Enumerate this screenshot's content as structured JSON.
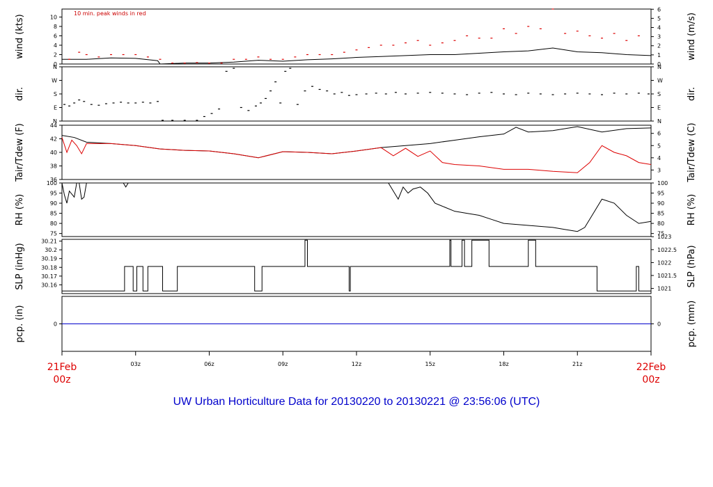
{
  "footer": {
    "title": "UW Urban Horticulture Data for 20130220  to  20130221 @ 23:56:06  (UTC)"
  },
  "colors": {
    "black": "#000000",
    "red": "#dd0000",
    "blue": "#0000cc"
  },
  "chart_data": {
    "type": "line",
    "x_axis": {
      "unit": "hour UTC",
      "range": [
        0,
        24
      ],
      "ticks": [
        {
          "x": 0,
          "line1": "21Feb",
          "line2": "00z",
          "red": true
        },
        {
          "x": 3,
          "line1": "03z",
          "line2": "",
          "red": false
        },
        {
          "x": 6,
          "line1": "06z",
          "line2": "",
          "red": false
        },
        {
          "x": 9,
          "line1": "09z",
          "line2": "",
          "red": false
        },
        {
          "x": 12,
          "line1": "12z",
          "line2": "",
          "red": false
        },
        {
          "x": 15,
          "line1": "15z",
          "line2": "",
          "red": false
        },
        {
          "x": 18,
          "line1": "18z",
          "line2": "",
          "red": false
        },
        {
          "x": 21,
          "line1": "21z",
          "line2": "",
          "red": false
        },
        {
          "x": 24,
          "line1": "22Feb",
          "line2": "00z",
          "red": true
        }
      ]
    },
    "panels": [
      {
        "id": "wind",
        "ylabel_left": "wind (kts)",
        "ylabel_right": "wind (m/s)",
        "annotation": "10 min. peak winds in red",
        "ylim": [
          0,
          11.7
        ],
        "left_ticks": [
          0,
          2,
          4,
          6,
          8,
          10
        ],
        "right_ticks": [
          {
            "v": 0,
            "label": "0"
          },
          {
            "v": 1.944,
            "label": "1"
          },
          {
            "v": 3.888,
            "label": "2"
          },
          {
            "v": 5.832,
            "label": "3"
          },
          {
            "v": 7.776,
            "label": "4"
          },
          {
            "v": 9.72,
            "label": "5"
          },
          {
            "v": 11.66,
            "label": "6"
          }
        ],
        "series": [
          {
            "role": "speed",
            "color": "#000000",
            "style": "line",
            "x": [
              0,
              1,
              2,
              3,
              3.9,
              4,
              5,
              6,
              7,
              8,
              9,
              10,
              11,
              12,
              13,
              14,
              15,
              16,
              17,
              18,
              19,
              20,
              21,
              22,
              23,
              24
            ],
            "y": [
              1.0,
              1.0,
              1.3,
              1.2,
              0.7,
              0,
              0.2,
              0.2,
              0.4,
              0.8,
              0.6,
              0.9,
              1.1,
              1.4,
              1.6,
              1.8,
              2.0,
              2.0,
              2.3,
              2.6,
              2.8,
              3.4,
              2.6,
              2.4,
              2.0,
              1.8
            ]
          },
          {
            "role": "peak",
            "color": "#dd0000",
            "style": "points",
            "x": [
              0.3,
              0.7,
              1.0,
              1.5,
              2.0,
              2.5,
              3.0,
              3.5,
              4.0,
              4.5,
              5.0,
              5.5,
              6.0,
              6.5,
              7.0,
              7.5,
              8.0,
              8.5,
              9.0,
              9.5,
              10.0,
              10.5,
              11.0,
              11.5,
              12.0,
              12.5,
              13.0,
              13.5,
              14.0,
              14.5,
              15.0,
              15.5,
              16.0,
              16.5,
              17.0,
              17.5,
              18.0,
              18.5,
              19.0,
              19.5,
              20.0,
              20.5,
              21.0,
              21.5,
              22.0,
              22.5,
              23.0,
              23.5
            ],
            "y": [
              1.0,
              2.5,
              2.0,
              1.5,
              2.0,
              2.0,
              2.0,
              1.5,
              1.0,
              0.2,
              0.2,
              0.3,
              0.2,
              0.2,
              1.0,
              1.0,
              1.5,
              1.0,
              1.0,
              1.5,
              2.0,
              2.0,
              2.0,
              2.5,
              3.0,
              3.5,
              4.0,
              4.0,
              4.5,
              5.0,
              4.0,
              4.5,
              5.0,
              6.0,
              5.5,
              5.5,
              7.5,
              6.5,
              8.0,
              7.5,
              11.7,
              6.5,
              7.0,
              6.0,
              5.5,
              6.5,
              5.0,
              6.0
            ]
          }
        ]
      },
      {
        "id": "dir",
        "ylabel_left": "dir.",
        "ylabel_right": "dir.",
        "ylim": [
          0,
          360
        ],
        "left_ticks": [
          {
            "v": 0,
            "label": "N"
          },
          {
            "v": 90,
            "label": "E"
          },
          {
            "v": 180,
            "label": "S"
          },
          {
            "v": 270,
            "label": "W"
          },
          {
            "v": 360,
            "label": "N"
          }
        ],
        "right_ticks": [
          {
            "v": 0,
            "label": "N"
          },
          {
            "v": 90,
            "label": "E"
          },
          {
            "v": 180,
            "label": "S"
          },
          {
            "v": 270,
            "label": "W"
          },
          {
            "v": 360,
            "label": "N"
          }
        ],
        "series": [
          {
            "role": "direction",
            "color": "#000000",
            "style": "points",
            "x": [
              0.1,
              0.3,
              0.5,
              0.7,
              0.9,
              1.2,
              1.5,
              1.8,
              2.1,
              2.4,
              2.7,
              3.0,
              3.3,
              3.6,
              3.9,
              4.1,
              4.5,
              5.0,
              5.5,
              5.8,
              6.1,
              6.4,
              6.7,
              7.0,
              7.3,
              7.6,
              7.9,
              8.1,
              8.3,
              8.5,
              8.7,
              8.9,
              9.1,
              9.3,
              9.6,
              9.9,
              10.2,
              10.5,
              10.8,
              11.1,
              11.4,
              11.7,
              12.0,
              12.4,
              12.8,
              13.2,
              13.6,
              14.0,
              14.5,
              15.0,
              15.5,
              16.0,
              16.5,
              17.0,
              17.5,
              18.0,
              18.5,
              19.0,
              19.5,
              20.0,
              20.5,
              21.0,
              21.5,
              22.0,
              22.5,
              23.0,
              23.5,
              23.9
            ],
            "y": [
              110,
              100,
              120,
              140,
              130,
              110,
              105,
              115,
              120,
              125,
              120,
              120,
              125,
              120,
              130,
              5,
              5,
              5,
              5,
              30,
              50,
              80,
              330,
              350,
              90,
              70,
              100,
              120,
              150,
              200,
              260,
              120,
              330,
              350,
              110,
              200,
              230,
              210,
              200,
              180,
              190,
              170,
              175,
              180,
              185,
              180,
              190,
              180,
              185,
              190,
              185,
              180,
              175,
              185,
              190,
              180,
              175,
              185,
              180,
              175,
              180,
              185,
              180,
              175,
              185,
              180,
              185,
              180
            ]
          }
        ]
      },
      {
        "id": "temp",
        "ylabel_left": "Tair/Tdew (F)",
        "ylabel_right": "Tair/Tdew (C)",
        "ylim": [
          36,
          44
        ],
        "left_ticks": [
          36,
          38,
          40,
          42,
          44
        ],
        "right_ticks": [
          {
            "v": 37.4,
            "label": "3"
          },
          {
            "v": 39.2,
            "label": "4"
          },
          {
            "v": 41,
            "label": "5"
          },
          {
            "v": 42.8,
            "label": "6"
          }
        ],
        "series": [
          {
            "role": "Tair",
            "color": "#000000",
            "style": "line",
            "x": [
              0,
              0.5,
              1,
              2,
              3,
              4,
              5,
              6,
              7,
              8,
              9,
              10,
              11,
              12,
              13,
              14,
              15,
              16,
              17,
              18,
              18.5,
              19,
              20,
              21,
              22,
              23,
              24
            ],
            "y": [
              42.5,
              42.2,
              41.5,
              41.3,
              41.0,
              40.5,
              40.3,
              40.2,
              39.8,
              39.2,
              40.1,
              40.0,
              39.8,
              40.2,
              40.7,
              41.0,
              41.3,
              41.8,
              42.3,
              42.7,
              43.7,
              43.0,
              43.2,
              43.8,
              43.0,
              43.5,
              43.6
            ]
          },
          {
            "role": "Tdew",
            "color": "#dd0000",
            "style": "line",
            "x": [
              0,
              0.2,
              0.4,
              0.6,
              0.8,
              1,
              2,
              3,
              4,
              5,
              6,
              7,
              8,
              9,
              10,
              11,
              12,
              13,
              13.5,
              14,
              14.5,
              15,
              15.5,
              16,
              17,
              18,
              19,
              20,
              21,
              21.5,
              22,
              22.5,
              23,
              23.5,
              24
            ],
            "y": [
              42.2,
              40.0,
              41.8,
              41.0,
              39.8,
              41.3,
              41.3,
              41.0,
              40.5,
              40.3,
              40.2,
              39.8,
              39.2,
              40.1,
              40.0,
              39.8,
              40.2,
              40.7,
              39.5,
              40.6,
              39.4,
              40.2,
              38.5,
              38.2,
              38.0,
              37.5,
              37.5,
              37.2,
              37.0,
              38.5,
              41.0,
              40.0,
              39.5,
              38.5,
              38.2
            ]
          }
        ]
      },
      {
        "id": "rh",
        "ylabel_left": "RH (%)",
        "ylabel_right": "RH (%)",
        "ylim": [
          73.5,
          100
        ],
        "left_ticks": [
          75,
          80,
          85,
          90,
          95,
          100
        ],
        "right_ticks": [
          {
            "v": 75,
            "label": "75"
          },
          {
            "v": 80,
            "label": "80"
          },
          {
            "v": 85,
            "label": "85"
          },
          {
            "v": 90,
            "label": "90"
          },
          {
            "v": 95,
            "label": "95"
          },
          {
            "v": 100,
            "label": "100"
          }
        ],
        "series": [
          {
            "role": "RH",
            "color": "#000000",
            "style": "line",
            "x": [
              0,
              0.1,
              0.2,
              0.3,
              0.5,
              0.6,
              0.7,
              0.8,
              0.9,
              1.0,
              1.1,
              1.2,
              2.5,
              2.6,
              2.7,
              13.3,
              13.5,
              13.7,
              13.9,
              14.1,
              14.3,
              14.6,
              14.9,
              15.2,
              15.6,
              16.0,
              16.5,
              17.0,
              17.5,
              18.0,
              19.0,
              20.0,
              20.5,
              21.0,
              21.3,
              21.6,
              22.0,
              22.5,
              23.0,
              23.5,
              24.0
            ],
            "y": [
              100,
              94,
              90,
              96,
              93,
              100,
              100,
              92,
              93,
              100,
              100,
              100,
              100,
              98,
              100,
              100,
              96,
              92,
              98,
              95,
              97,
              98,
              95,
              90,
              88,
              86,
              85,
              84,
              82,
              80,
              79,
              78,
              77,
              76,
              78,
              84,
              92,
              90,
              84,
              80,
              81
            ]
          }
        ]
      },
      {
        "id": "slp",
        "ylabel_left": "SLP (inHg)",
        "ylabel_right": "SLP (hPa)",
        "ylim": [
          30.15,
          30.212
        ],
        "left_ticks": [
          30.16,
          30.17,
          30.18,
          30.19,
          30.2,
          30.21
        ],
        "right_ticks": [
          {
            "v": 30.1559,
            "label": "1021"
          },
          {
            "v": 30.1707,
            "label": "1021.5"
          },
          {
            "v": 30.1854,
            "label": "1022"
          },
          {
            "v": 30.2002,
            "label": "1022.5"
          },
          {
            "v": 30.215,
            "label": "1023"
          }
        ],
        "series": [
          {
            "role": "SLP",
            "color": "#000000",
            "style": "step",
            "x": [
              0,
              2.55,
              2.9,
              3.05,
              3.3,
              3.5,
              3.75,
              4.1,
              4.7,
              7.85,
              8.15,
              9.9,
              10.0,
              11.7,
              11.75,
              15.8,
              15.85,
              16.3,
              16.4,
              16.7,
              17.4,
              19.0,
              19.3,
              21.8,
              23.4,
              23.5,
              24
            ],
            "y": [
              30.153,
              30.181,
              30.153,
              30.181,
              30.153,
              30.181,
              30.181,
              30.153,
              30.181,
              30.153,
              30.181,
              30.211,
              30.181,
              30.153,
              30.181,
              30.211,
              30.181,
              30.211,
              30.181,
              30.211,
              30.181,
              30.211,
              30.181,
              30.153,
              30.181,
              30.153,
              30.153
            ]
          }
        ]
      },
      {
        "id": "pcp",
        "ylabel_left": "pcp. (in)",
        "ylabel_right": "pcp. (mm)",
        "ylim": [
          -0.5,
          0.5
        ],
        "left_ticks": [
          0
        ],
        "right_ticks": [
          {
            "v": 0,
            "label": "0"
          }
        ],
        "series": [
          {
            "role": "precip",
            "color": "#0000cc",
            "style": "line",
            "x": [
              0,
              24
            ],
            "y": [
              0,
              0
            ]
          }
        ]
      }
    ]
  }
}
